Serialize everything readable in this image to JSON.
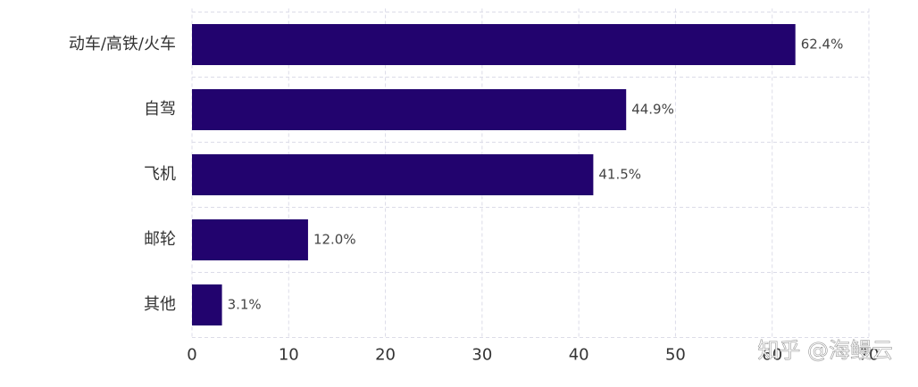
{
  "chart_data": {
    "type": "hbar",
    "categories": [
      "动车/高铁/火车",
      "自驾",
      "飞机",
      "邮轮",
      "其他"
    ],
    "values": [
      62.4,
      44.9,
      41.5,
      12.0,
      3.1
    ],
    "value_labels": [
      "62.4%",
      "44.9%",
      "41.5%",
      "12.0%",
      "3.1%"
    ],
    "color": "#22036e",
    "xlim": [
      0,
      70
    ],
    "xticks": [
      0,
      10,
      20,
      30,
      40,
      50,
      60,
      70
    ],
    "grid": true,
    "watermark": "知乎 @海鳗云"
  }
}
